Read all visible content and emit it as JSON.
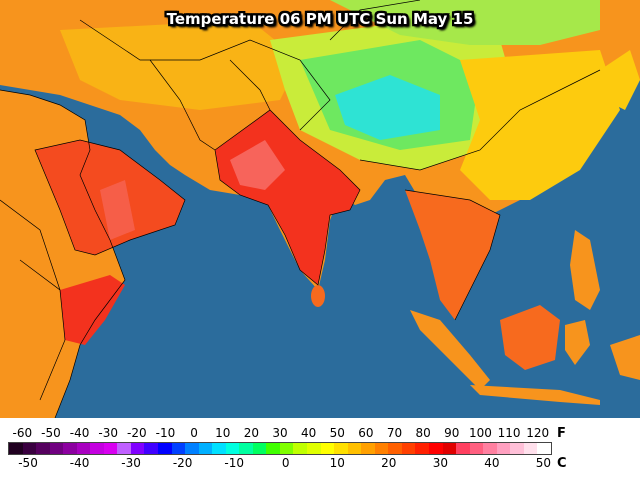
{
  "map": {
    "title": "Temperature 06 PM UTC Sun May 15",
    "ocean_color": "#2b6c9c",
    "zones": [
      {
        "name": "base-land-zone",
        "color": "#f7941d"
      },
      {
        "name": "north-africa-zone",
        "color": "#f7a21a"
      },
      {
        "name": "central-asia-zone",
        "color": "#f9b315"
      },
      {
        "name": "arabia-hot-zone",
        "color": "#f44b1f"
      },
      {
        "name": "india-hot-zone",
        "color": "#f3321e"
      },
      {
        "name": "tibet-cold-zone",
        "color": "#6ee860"
      },
      {
        "name": "tibet-core-zone",
        "color": "#2ee3d4"
      },
      {
        "name": "china-zone",
        "color": "#fdcb0e"
      },
      {
        "name": "seasia-zone",
        "color": "#f76a1e"
      }
    ]
  },
  "legend": {
    "f_ticks": [
      "-60",
      "-50",
      "-40",
      "-30",
      "-20",
      "-10",
      "0",
      "10",
      "20",
      "30",
      "40",
      "50",
      "60",
      "70",
      "80",
      "90",
      "100",
      "110",
      "120"
    ],
    "c_ticks": [
      "-50",
      "-40",
      "-30",
      "-20",
      "-10",
      "0",
      "10",
      "20",
      "30",
      "40",
      "50"
    ],
    "f_unit": "F",
    "c_unit": "C",
    "colors": [
      "#200020",
      "#3a0040",
      "#55005e",
      "#700080",
      "#8c00a0",
      "#a800c0",
      "#c400e0",
      "#d800f0",
      "#c060ff",
      "#8000ff",
      "#4000ff",
      "#0000ff",
      "#0040ff",
      "#0080ff",
      "#00b0ff",
      "#00e0ff",
      "#00ffe0",
      "#00ffa0",
      "#00ff60",
      "#40ff00",
      "#80ff00",
      "#c0ff00",
      "#e0ff00",
      "#ffff00",
      "#ffe000",
      "#ffc000",
      "#ffa000",
      "#ff8000",
      "#ff6000",
      "#ff4000",
      "#ff2000",
      "#ff0000",
      "#e00000",
      "#ff4060",
      "#ff6080",
      "#ff80a0",
      "#ffa0c0",
      "#ffc0d8",
      "#ffe0ec",
      "#ffffff"
    ]
  }
}
